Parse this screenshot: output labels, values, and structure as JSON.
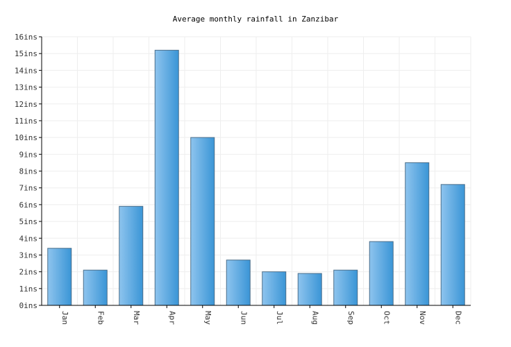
{
  "chart_data": {
    "type": "bar",
    "title": "Average monthly rainfall in Zanzibar",
    "xlabel": "",
    "ylabel": "",
    "categories": [
      "Jan",
      "Feb",
      "Mar",
      "Apr",
      "May",
      "Jun",
      "Jul",
      "Aug",
      "Sep",
      "Oct",
      "Nov",
      "Dec"
    ],
    "values": [
      3.4,
      2.1,
      5.9,
      15.2,
      10.0,
      2.7,
      2.0,
      1.9,
      2.1,
      3.8,
      8.5,
      7.2
    ],
    "ylim": [
      0,
      16
    ],
    "yticks": [
      "0ins",
      "1ins",
      "2ins",
      "3ins",
      "4ins",
      "5ins",
      "6ins",
      "7ins",
      "8ins",
      "9ins",
      "10ins",
      "11ins",
      "12ins",
      "13ins",
      "14ins",
      "15ins",
      "16ins"
    ],
    "grid": true,
    "legend": "none",
    "colors": {
      "bar_light": "#8ec4ee",
      "bar_dark": "#3a95d6",
      "bar_border": "#4a6e8a"
    }
  }
}
